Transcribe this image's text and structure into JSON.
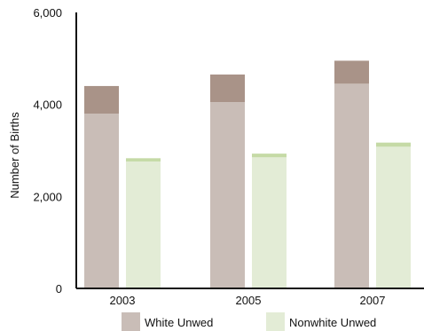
{
  "chart_data": {
    "type": "bar",
    "stacked_segments": true,
    "ylabel": "Number of Births",
    "xlabel": "",
    "ylim": [
      0,
      6000
    ],
    "y_ticks": [
      0,
      2000,
      4000,
      6000
    ],
    "y_tick_labels": [
      "0",
      "2,000",
      "4,000",
      "6,000"
    ],
    "categories": [
      "2003",
      "2005",
      "2007"
    ],
    "series": [
      {
        "name": "White Unwed",
        "values": [
          4400,
          4650,
          4950
        ],
        "lower_segment": [
          3800,
          4050,
          4450
        ],
        "color": "#c9bdb7",
        "upper_color": "#a99388"
      },
      {
        "name": "Nonwhite Unwed",
        "values": [
          2830,
          2930,
          3170
        ],
        "lower_segment": [
          2760,
          2850,
          3080
        ],
        "color": "#e3ecd6",
        "upper_color": "#c5daa6"
      }
    ],
    "legend_position": "bottom",
    "grid": false
  }
}
